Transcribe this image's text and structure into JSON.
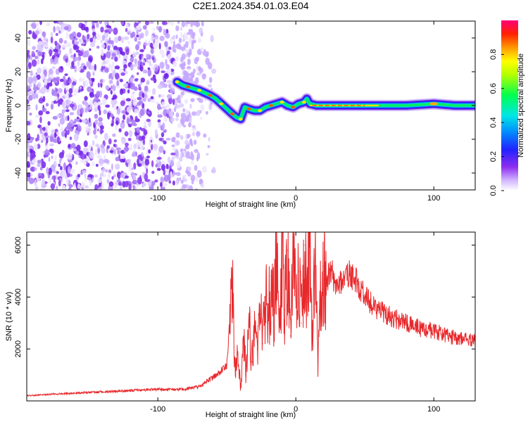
{
  "title": "C2E1.2024.354.01.03.E04",
  "chart_data": [
    {
      "type": "heatmap",
      "xlabel": "Height of straight line (km)",
      "ylabel": "Frequency (Hz)",
      "colorbar_label": "Normalized spectral amplitude",
      "xlim": [
        -195,
        130
      ],
      "ylim": [
        -50,
        50
      ],
      "colorbar_range": [
        0,
        1
      ],
      "x_ticks": [
        {
          "value": -100,
          "label": "-100"
        },
        {
          "value": 0,
          "label": "0"
        },
        {
          "value": 100,
          "label": "100"
        }
      ],
      "y_ticks": [
        {
          "value": 40,
          "label": "40"
        },
        {
          "value": 20,
          "label": "20"
        },
        {
          "value": 0,
          "label": "0"
        },
        {
          "value": -20,
          "label": "-20"
        },
        {
          "value": -40,
          "label": "-40"
        }
      ],
      "colorbar_ticks": [
        {
          "value": 0.0,
          "label": "0.0"
        },
        {
          "value": 0.2,
          "label": "0.2"
        },
        {
          "value": 0.4,
          "label": "0.4"
        },
        {
          "value": 0.6,
          "label": "0.6"
        },
        {
          "value": 0.8,
          "label": "0.8"
        }
      ],
      "noise_region_x": [
        -195,
        -68
      ],
      "ridge": {
        "x": [
          -86,
          -82,
          -78,
          -74,
          -70,
          -66,
          -62,
          -58,
          -54,
          -50,
          -46,
          -43,
          -40,
          -37,
          -34,
          -30,
          -26,
          -22,
          -18,
          -14,
          -10,
          -6,
          -2,
          2,
          6,
          8,
          10,
          15,
          25,
          40,
          60,
          80,
          100,
          115,
          130
        ],
        "y": [
          14,
          12,
          11,
          10,
          9,
          7.5,
          6,
          4,
          1,
          -2,
          -5,
          -7,
          -8,
          -1,
          -2,
          -3,
          -3,
          -1,
          0,
          1,
          2,
          0,
          -1,
          1,
          2,
          4,
          1,
          0,
          0,
          0,
          0,
          0,
          1,
          0,
          0
        ]
      }
    },
    {
      "type": "line",
      "xlabel": "Height of straight line (km)",
      "ylabel": "SNR (10 * v/v)",
      "xlim": [
        -195,
        130
      ],
      "ylim": [
        0,
        6500
      ],
      "line_color": "#e8282b",
      "x_ticks": [
        {
          "value": -100,
          "label": "-100"
        },
        {
          "value": 0,
          "label": "0"
        },
        {
          "value": 100,
          "label": "100"
        }
      ],
      "y_ticks": [
        {
          "value": 6000,
          "label": "6000"
        },
        {
          "value": 4000,
          "label": "4000"
        },
        {
          "value": 2000,
          "label": "2000"
        }
      ],
      "series": [
        {
          "x": [
            -195,
            -180,
            -160,
            -140,
            -120,
            -100,
            -90,
            -80,
            -70,
            -60,
            -55,
            -50,
            -46,
            -44,
            -42,
            -40,
            -38,
            -36,
            -34,
            -32,
            -30,
            -28,
            -26,
            -24,
            -22,
            -20,
            -18,
            -16,
            -14,
            -12,
            -10,
            -8,
            -6,
            -4,
            -2,
            0,
            2,
            4,
            6,
            8,
            10,
            12,
            14,
            16,
            18,
            20,
            22,
            25,
            30,
            35,
            40,
            45,
            50,
            55,
            60,
            70,
            80,
            90,
            100,
            110,
            120,
            130
          ],
          "values": [
            200,
            250,
            300,
            350,
            400,
            450,
            430,
            450,
            550,
            900,
            1100,
            1400,
            4400,
            1000,
            1800,
            500,
            2500,
            1000,
            3000,
            1500,
            3000,
            2000,
            3500,
            2200,
            4000,
            3000,
            4800,
            3500,
            5800,
            2800,
            5500,
            3500,
            5800,
            2500,
            6000,
            3600,
            5000,
            3000,
            6000,
            3800,
            6300,
            2500,
            5600,
            1200,
            4500,
            5200,
            4600,
            5000,
            4500,
            4800,
            4900,
            4500,
            4100,
            3700,
            3500,
            3200,
            3000,
            2800,
            2700,
            2500,
            2400,
            2300
          ]
        }
      ]
    }
  ]
}
